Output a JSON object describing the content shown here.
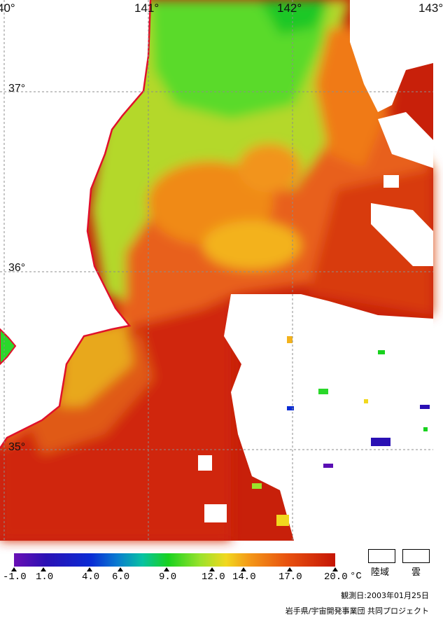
{
  "map": {
    "longitude_labels": [
      "40°",
      "141°",
      "142°",
      "143°"
    ],
    "latitude_labels": [
      "37°",
      "36°",
      "35°"
    ]
  },
  "legend": {
    "ticks": [
      "-1.0",
      "1.0",
      "4.0",
      "6.0",
      "9.0",
      "12.0",
      "14.0",
      "17.0",
      "20.0"
    ],
    "unit": "°C",
    "land_label": "陸域",
    "cloud_label": "雲",
    "colors": {
      "low": "#6a0fb4",
      "mid": "#18d21e",
      "high": "#c51505",
      "coast": "#e0102a"
    }
  },
  "observation_date": "観測日:2003年01月25日",
  "credit": "岩手県/宇宙開発事業団  共同プロジェクト"
}
